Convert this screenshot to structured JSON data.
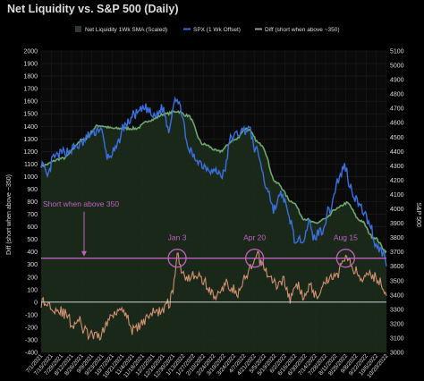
{
  "chart_data": {
    "type": "line",
    "title": "Net Liquidity vs. S&P 500 (Daily)",
    "ylabel_left": "Diff (short when above ~350)",
    "ylabel_right": "S&P 500",
    "left_axis": {
      "ylim": [
        -400,
        2000
      ],
      "ticks": [
        "-400",
        "-300",
        "-200",
        "-100",
        "0",
        "100",
        "200",
        "300",
        "400",
        "500",
        "600",
        "700",
        "800",
        "900",
        "1000",
        "1100",
        "1200",
        "1300",
        "1400",
        "1500",
        "1600",
        "1700",
        "1800",
        "1900",
        "2000"
      ]
    },
    "right_axis": {
      "ylim": [
        3000,
        5100
      ],
      "ticks": [
        "3000",
        "3100",
        "3200",
        "3300",
        "3400",
        "3500",
        "3600",
        "3700",
        "3800",
        "3900",
        "4000",
        "4100",
        "4200",
        "4300",
        "4400",
        "4500",
        "4600",
        "4700",
        "4800",
        "4900",
        "5000",
        "5100"
      ]
    },
    "x_ticks": [
      "7/1/2021",
      "7/15/2021",
      "7/29/2021",
      "8/12/2021",
      "8/26/2021",
      "9/9/2021",
      "9/23/2021",
      "10/7/2021",
      "10/21/2021",
      "11/4/2021",
      "11/18/2021",
      "12/2/2021",
      "12/16/2021",
      "12/30/2021",
      "1/13/2022",
      "1/27/2022",
      "2/10/2022",
      "2/24/2022",
      "3/10/2022",
      "3/24/2022",
      "4/7/2022",
      "4/21/2022",
      "5/5/2022",
      "5/19/2022",
      "6/2/2022",
      "6/16/2022",
      "6/30/2022",
      "7/14/2022",
      "7/28/2022",
      "8/11/2022",
      "8/25/2022",
      "9/8/2022",
      "9/22/2022",
      "10/6/2022",
      "10/20/2022"
    ],
    "legend": [
      {
        "name": "Net Liquidity 1Wk SMA (Scaled)",
        "color": "#2c3a2c"
      },
      {
        "name": "SPX (1 Wk Offset)",
        "color": "#3b6fe0"
      },
      {
        "name": "Diff (short when above ~350)",
        "color": "#9a9a9a"
      }
    ],
    "threshold": {
      "value": 350,
      "label": "Short when above 350",
      "color": "#c060c0"
    },
    "annotations": [
      {
        "label": "Jan 3",
        "x_index": 130
      },
      {
        "label": "Apr 20",
        "x_index": 204
      },
      {
        "label": "Aug 15",
        "x_index": 291
      }
    ],
    "n_points": 331,
    "series": [
      {
        "name": "Net Liquidity 1Wk SMA (Scaled)",
        "axis": "right",
        "color": "#6ea86e",
        "knots": [
          [
            0,
            4300
          ],
          [
            20,
            4350
          ],
          [
            40,
            4480
          ],
          [
            55,
            4580
          ],
          [
            70,
            4560
          ],
          [
            90,
            4560
          ],
          [
            105,
            4620
          ],
          [
            118,
            4660
          ],
          [
            130,
            4680
          ],
          [
            140,
            4650
          ],
          [
            155,
            4450
          ],
          [
            170,
            4400
          ],
          [
            185,
            4480
          ],
          [
            196,
            4560
          ],
          [
            210,
            4450
          ],
          [
            225,
            4180
          ],
          [
            240,
            4050
          ],
          [
            252,
            3930
          ],
          [
            262,
            3900
          ],
          [
            272,
            3930
          ],
          [
            282,
            4000
          ],
          [
            292,
            4040
          ],
          [
            305,
            3920
          ],
          [
            318,
            3800
          ],
          [
            331,
            3700
          ]
        ]
      },
      {
        "name": "SPX (1 Wk Offset)",
        "axis": "right",
        "color": "#3b6fe0",
        "knots": [
          [
            0,
            4320
          ],
          [
            6,
            4220
          ],
          [
            12,
            4360
          ],
          [
            24,
            4400
          ],
          [
            36,
            4440
          ],
          [
            48,
            4520
          ],
          [
            56,
            4560
          ],
          [
            64,
            4360
          ],
          [
            70,
            4400
          ],
          [
            80,
            4580
          ],
          [
            90,
            4660
          ],
          [
            100,
            4700
          ],
          [
            108,
            4640
          ],
          [
            116,
            4700
          ],
          [
            122,
            4560
          ],
          [
            128,
            4780
          ],
          [
            134,
            4690
          ],
          [
            140,
            4420
          ],
          [
            148,
            4350
          ],
          [
            156,
            4300
          ],
          [
            166,
            4260
          ],
          [
            174,
            4240
          ],
          [
            182,
            4500
          ],
          [
            192,
            4540
          ],
          [
            198,
            4560
          ],
          [
            206,
            4400
          ],
          [
            216,
            4150
          ],
          [
            222,
            4000
          ],
          [
            230,
            4100
          ],
          [
            238,
            3920
          ],
          [
            244,
            3750
          ],
          [
            250,
            3800
          ],
          [
            256,
            3900
          ],
          [
            260,
            3800
          ],
          [
            268,
            3850
          ],
          [
            276,
            4000
          ],
          [
            284,
            4200
          ],
          [
            290,
            4300
          ],
          [
            296,
            4150
          ],
          [
            300,
            4080
          ],
          [
            306,
            4000
          ],
          [
            314,
            3900
          ],
          [
            320,
            3750
          ],
          [
            326,
            3700
          ],
          [
            331,
            3600
          ]
        ]
      },
      {
        "name": "Diff (short when above ~350)",
        "axis": "left",
        "color": "#d09070",
        "knots": [
          [
            0,
            0
          ],
          [
            8,
            -20
          ],
          [
            16,
            -60
          ],
          [
            24,
            -100
          ],
          [
            30,
            -180
          ],
          [
            36,
            -140
          ],
          [
            40,
            -220
          ],
          [
            46,
            -260
          ],
          [
            54,
            -280
          ],
          [
            60,
            -220
          ],
          [
            66,
            -120
          ],
          [
            72,
            -60
          ],
          [
            78,
            -40
          ],
          [
            84,
            -150
          ],
          [
            88,
            -230
          ],
          [
            96,
            -180
          ],
          [
            102,
            -100
          ],
          [
            110,
            -80
          ],
          [
            116,
            -60
          ],
          [
            122,
            -10
          ],
          [
            126,
            100
          ],
          [
            130,
            370
          ],
          [
            134,
            260
          ],
          [
            140,
            200
          ],
          [
            148,
            220
          ],
          [
            156,
            160
          ],
          [
            164,
            60
          ],
          [
            170,
            50
          ],
          [
            176,
            150
          ],
          [
            182,
            120
          ],
          [
            188,
            60
          ],
          [
            196,
            200
          ],
          [
            202,
            280
          ],
          [
            206,
            370
          ],
          [
            212,
            300
          ],
          [
            218,
            200
          ],
          [
            226,
            130
          ],
          [
            232,
            180
          ],
          [
            238,
            20
          ],
          [
            244,
            140
          ],
          [
            250,
            60
          ],
          [
            256,
            120
          ],
          [
            264,
            60
          ],
          [
            270,
            150
          ],
          [
            276,
            200
          ],
          [
            284,
            230
          ],
          [
            290,
            370
          ],
          [
            296,
            300
          ],
          [
            300,
            260
          ],
          [
            306,
            180
          ],
          [
            312,
            260
          ],
          [
            318,
            200
          ],
          [
            326,
            150
          ],
          [
            331,
            40
          ]
        ]
      }
    ]
  }
}
